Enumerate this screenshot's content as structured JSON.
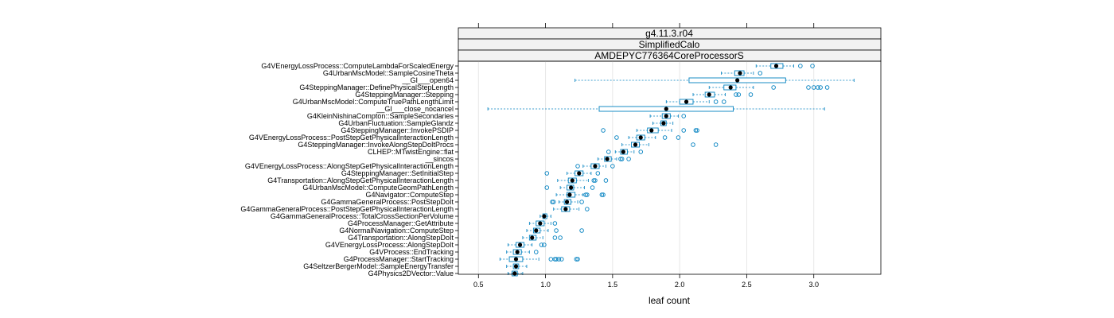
{
  "chart_data": {
    "type": "boxplot",
    "strips": [
      "g4.11.3.r04",
      "SimplifiedCalo",
      "AMDEPYC776364CoreProcessorS"
    ],
    "xlabel": "leaf count",
    "xlim": [
      0.35,
      3.5
    ],
    "xticks": [
      "0.5",
      "1.0",
      "1.5",
      "2.0",
      "2.5",
      "3.0"
    ],
    "colors": {
      "box": "#0080c0",
      "median": "#000000",
      "grid": "#e6e6e6",
      "strip_bg": "#f2f2f2"
    },
    "rows": [
      {
        "name": "G4VEnergyLossProcess::ComputeLambdaForScaledEnergy",
        "min": 2.57,
        "q1": 2.68,
        "median": 2.72,
        "q3": 2.77,
        "max": 2.85,
        "outliers": [
          2.9,
          2.99
        ]
      },
      {
        "name": "G4UrbanMscModel::SampleCosineTheta",
        "min": 2.31,
        "q1": 2.41,
        "median": 2.45,
        "q3": 2.48,
        "max": 2.55,
        "outliers": [
          2.6
        ]
      },
      {
        "name": "__GI___open64",
        "min": 1.22,
        "q1": 2.07,
        "median": 2.43,
        "q3": 2.79,
        "max": 3.3,
        "outliers": []
      },
      {
        "name": "G4SteppingManager::DefinePhysicalStepLength",
        "min": 2.22,
        "q1": 2.33,
        "median": 2.38,
        "q3": 2.42,
        "max": 2.55,
        "outliers": [
          2.7,
          2.96,
          3.0,
          3.03,
          3.05,
          3.1
        ]
      },
      {
        "name": "G4SteppingManager::Stepping",
        "min": 2.1,
        "q1": 2.19,
        "median": 2.22,
        "q3": 2.26,
        "max": 2.34,
        "outliers": [
          2.42,
          2.44,
          2.53
        ]
      },
      {
        "name": "G4UrbanMscModel::ComputeTruePathLengthLimit",
        "min": 1.9,
        "q1": 2.0,
        "median": 2.05,
        "q3": 2.1,
        "max": 2.22,
        "outliers": [
          2.27,
          2.33
        ]
      },
      {
        "name": "__GI___close_nocancel",
        "min": 0.57,
        "q1": 1.4,
        "median": 1.9,
        "q3": 2.4,
        "max": 3.08,
        "outliers": []
      },
      {
        "name": "G4KleinNishinaCompton::SampleSecondaries",
        "min": 1.78,
        "q1": 1.87,
        "median": 1.9,
        "q3": 1.93,
        "max": 1.99,
        "outliers": [
          2.03
        ]
      },
      {
        "name": "G4UrbanFluctuation::SampleGlandz",
        "min": 1.8,
        "q1": 1.86,
        "median": 1.88,
        "q3": 1.9,
        "max": 1.95,
        "outliers": []
      },
      {
        "name": "G4SteppingManager::InvokePSDIP",
        "min": 1.68,
        "q1": 1.76,
        "median": 1.79,
        "q3": 1.84,
        "max": 1.94,
        "outliers": [
          1.43,
          2.03,
          2.12,
          2.13
        ]
      },
      {
        "name": "G4VEnergyLossProcess::PostStepGetPhysicalInteractionLength",
        "min": 1.62,
        "q1": 1.68,
        "median": 1.71,
        "q3": 1.74,
        "max": 1.82,
        "outliers": [
          1.53,
          1.89,
          1.99
        ]
      },
      {
        "name": "G4SteppingManager::InvokeAlongStepDoItProcs",
        "min": 1.57,
        "q1": 1.64,
        "median": 1.67,
        "q3": 1.7,
        "max": 1.77,
        "outliers": [
          2.1,
          2.27
        ]
      },
      {
        "name": "CLHEP::MTwistEngine::flat",
        "min": 1.52,
        "q1": 1.56,
        "median": 1.58,
        "q3": 1.61,
        "max": 1.66,
        "outliers": [
          1.47,
          1.71
        ]
      },
      {
        "name": "__sincos",
        "min": 1.39,
        "q1": 1.44,
        "median": 1.46,
        "q3": 1.49,
        "max": 1.53,
        "outliers": [
          1.56,
          1.57,
          1.62
        ]
      },
      {
        "name": "G4VEnergyLossProcess::AlongStepGetPhysicalInteractionLength",
        "min": 1.28,
        "q1": 1.34,
        "median": 1.37,
        "q3": 1.4,
        "max": 1.45,
        "outliers": [
          1.24,
          1.5
        ]
      },
      {
        "name": "G4SteppingManager::SetInitialStep",
        "min": 1.16,
        "q1": 1.22,
        "median": 1.25,
        "q3": 1.28,
        "max": 1.34,
        "outliers": [
          1.01,
          1.39
        ]
      },
      {
        "name": "G4Transportation::AlongStepGetPhysicalInteractionLength",
        "min": 1.09,
        "q1": 1.17,
        "median": 1.2,
        "q3": 1.23,
        "max": 1.32,
        "outliers": [
          1.36,
          1.37,
          1.45
        ]
      },
      {
        "name": "G4UrbanMscModel::ComputeGeomPathLength",
        "min": 1.11,
        "q1": 1.16,
        "median": 1.19,
        "q3": 1.21,
        "max": 1.29,
        "outliers": [
          1.01,
          1.35
        ]
      },
      {
        "name": "G4Navigator::ComputeStep",
        "min": 1.08,
        "q1": 1.16,
        "median": 1.18,
        "q3": 1.22,
        "max": 1.28,
        "outliers": [
          1.3,
          1.31,
          1.42,
          1.43
        ]
      },
      {
        "name": "G4GammaGeneralProcess::PostStepDoIt",
        "min": 1.1,
        "q1": 1.14,
        "median": 1.16,
        "q3": 1.19,
        "max": 1.24,
        "outliers": [
          1.06,
          1.05,
          1.27
        ]
      },
      {
        "name": "G4GammaGeneralProcess::PostStepGetPhysicalInteractionLength",
        "min": 1.06,
        "q1": 1.12,
        "median": 1.15,
        "q3": 1.18,
        "max": 1.25,
        "outliers": [
          1.31
        ]
      },
      {
        "name": "G4GammaGeneralProcess::TotalCrossSectionPerVolume",
        "min": 0.96,
        "q1": 0.98,
        "median": 0.99,
        "q3": 1.01,
        "max": 1.04,
        "outliers": []
      },
      {
        "name": "G4ProcessManager::GetAttribute",
        "min": 0.88,
        "q1": 0.93,
        "median": 0.96,
        "q3": 0.99,
        "max": 1.04,
        "outliers": [
          1.07
        ]
      },
      {
        "name": "G4NormalNavigation::ComputeStep",
        "min": 0.86,
        "q1": 0.91,
        "median": 0.93,
        "q3": 0.96,
        "max": 1.02,
        "outliers": [
          1.08,
          1.27
        ]
      },
      {
        "name": "G4Transportation::AlongStepDoIt",
        "min": 0.83,
        "q1": 0.88,
        "median": 0.9,
        "q3": 0.93,
        "max": 0.98,
        "outliers": [
          1.07,
          1.11
        ]
      },
      {
        "name": "G4VEnergyLossProcess::AlongStepDoIt",
        "min": 0.72,
        "q1": 0.78,
        "median": 0.81,
        "q3": 0.84,
        "max": 0.9,
        "outliers": [
          0.97,
          0.99
        ]
      },
      {
        "name": "G4VProcess::EndTracking",
        "min": 0.71,
        "q1": 0.76,
        "median": 0.79,
        "q3": 0.82,
        "max": 0.88,
        "outliers": [
          0.93
        ]
      },
      {
        "name": "G4ProcessManager::StartTracking",
        "min": 0.66,
        "q1": 0.73,
        "median": 0.78,
        "q3": 0.83,
        "max": 0.95,
        "outliers": [
          1.04,
          1.07,
          1.08,
          1.1,
          1.12,
          1.23,
          1.24
        ]
      },
      {
        "name": "G4SeltzerBergerModel::SampleEnergyTransfer",
        "min": 0.71,
        "q1": 0.76,
        "median": 0.78,
        "q3": 0.8,
        "max": 0.86,
        "outliers": []
      },
      {
        "name": "G4Physics2DVector::Value",
        "min": 0.72,
        "q1": 0.75,
        "median": 0.77,
        "q3": 0.79,
        "max": 0.83,
        "outliers": []
      }
    ]
  }
}
